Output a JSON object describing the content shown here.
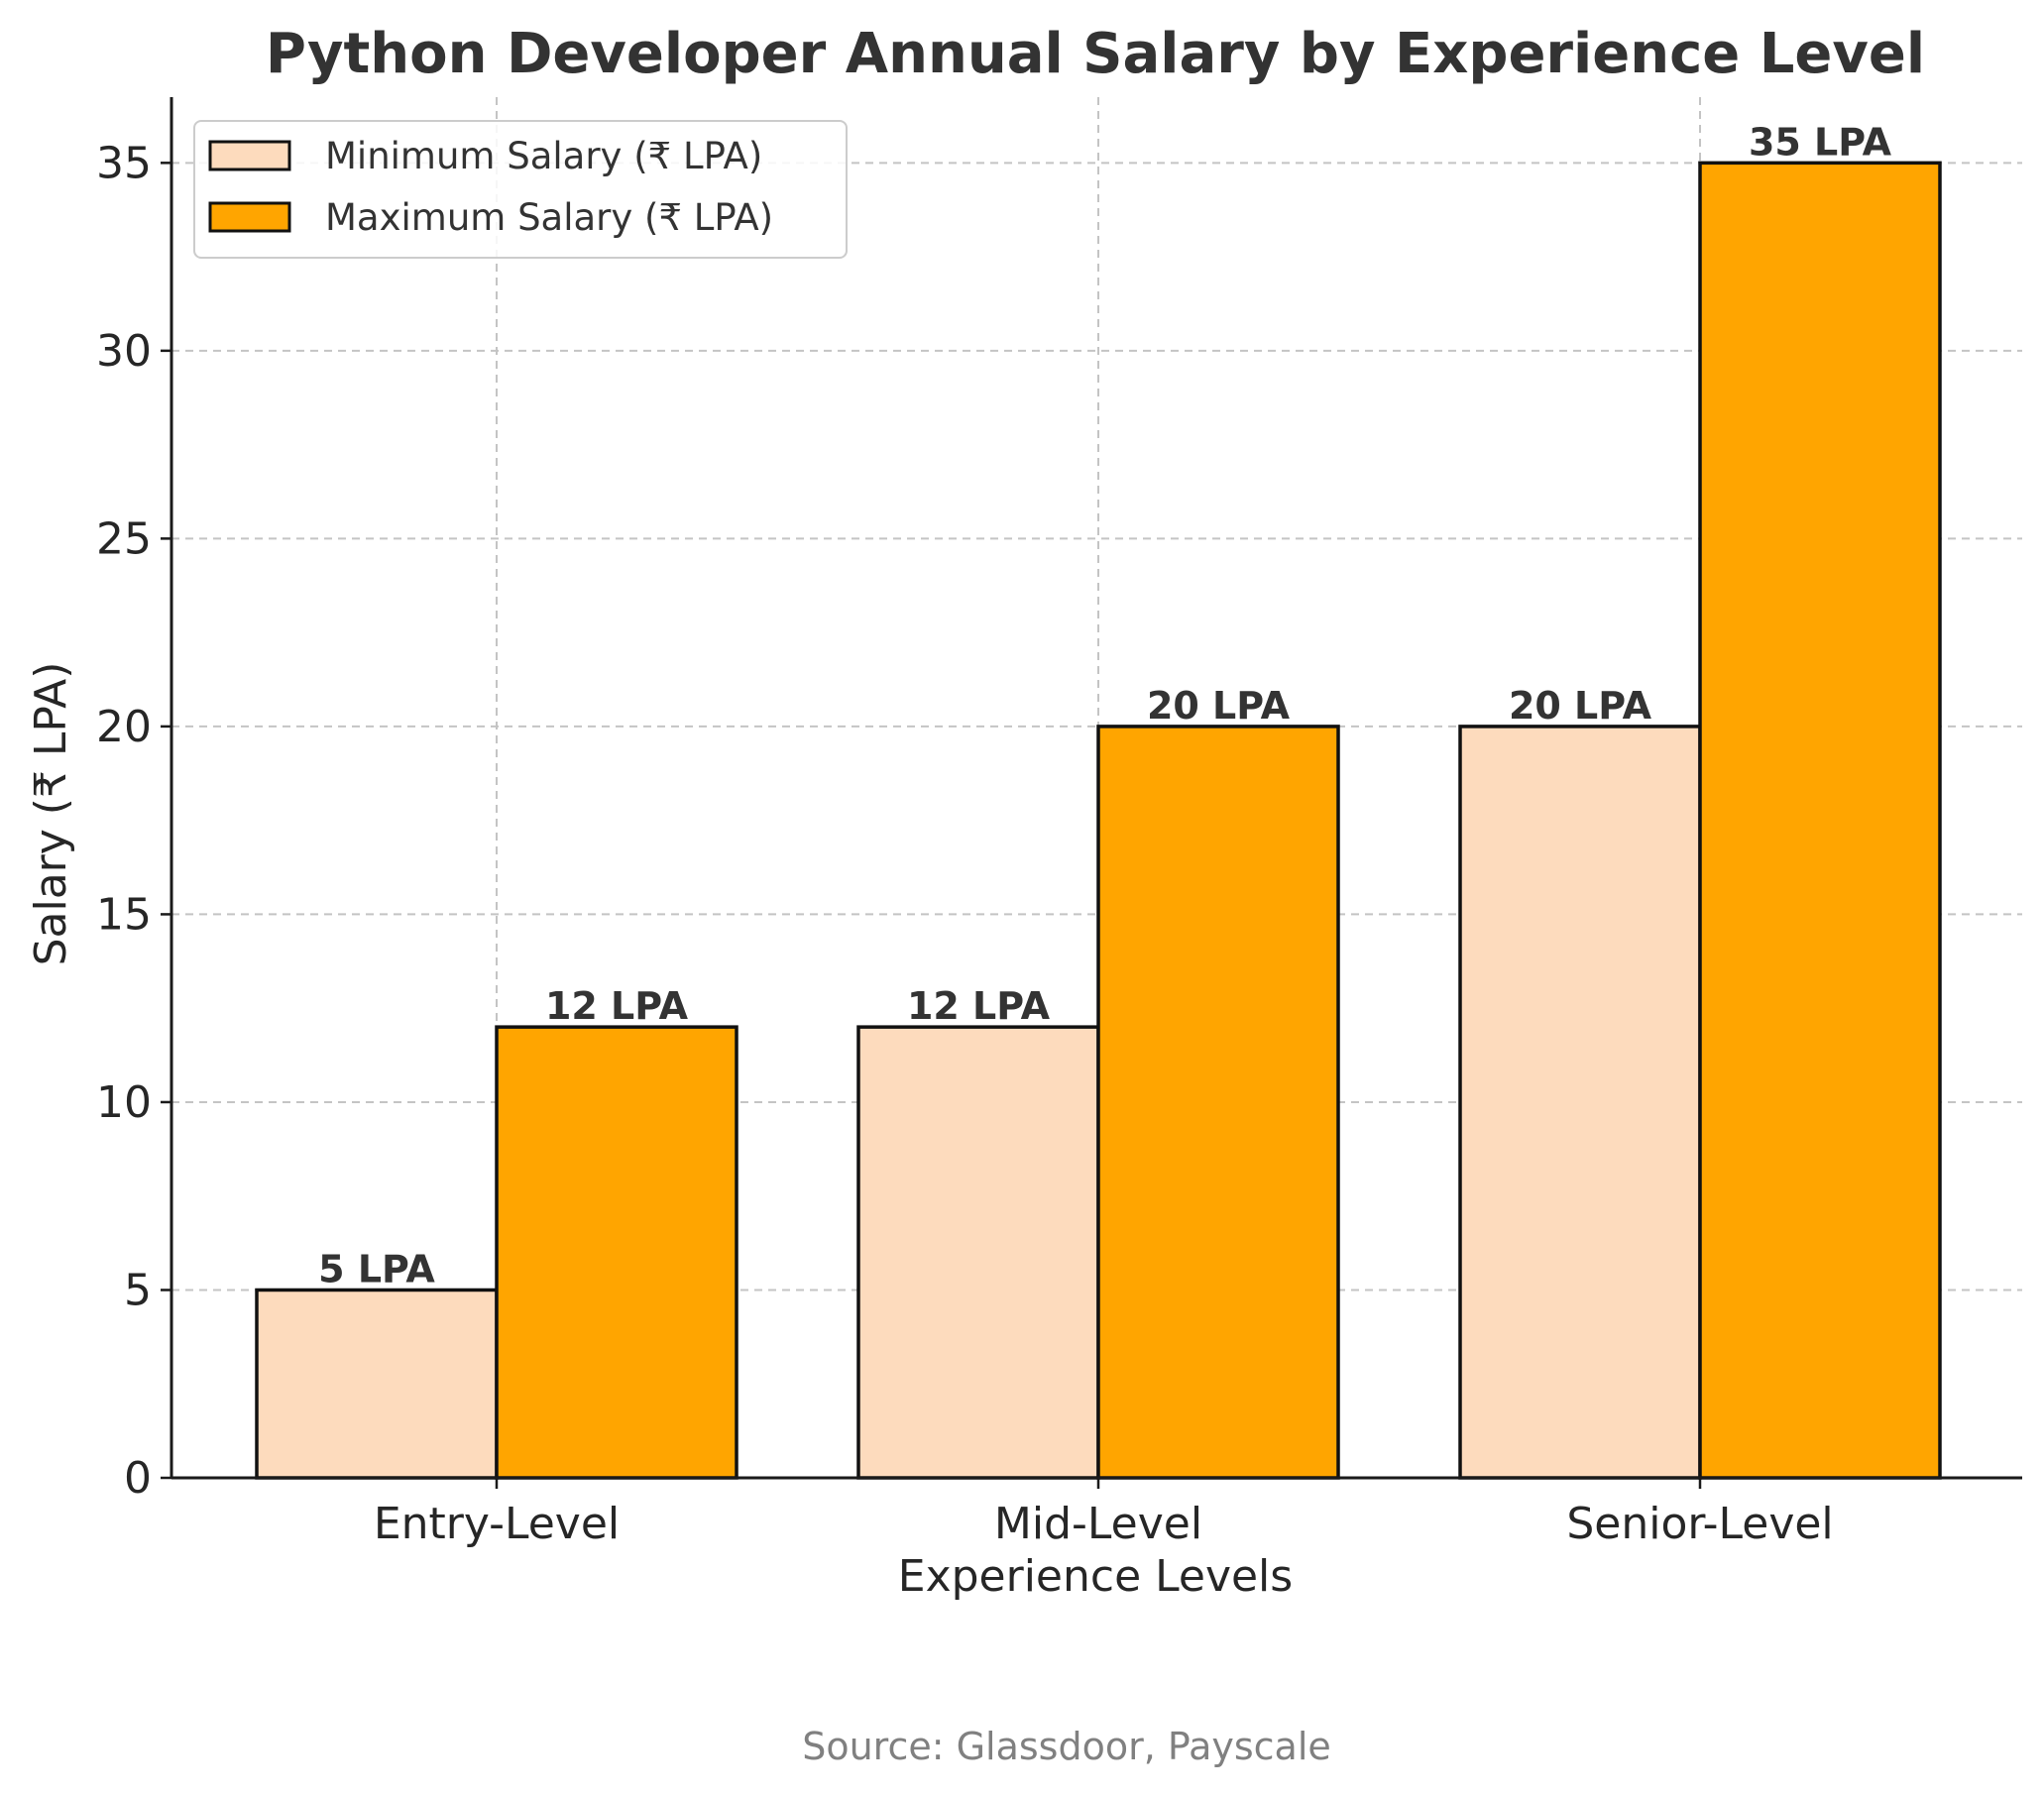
{
  "chart_data": {
    "type": "bar",
    "title": "Python Developer Annual Salary by Experience Level",
    "xlabel": "Experience Levels",
    "ylabel": "Salary (₹ LPA)",
    "categories": [
      "Entry-Level",
      "Mid-Level",
      "Senior-Level"
    ],
    "series": [
      {
        "name": "Minimum Salary (₹ LPA)",
        "values": [
          5,
          12,
          20
        ],
        "labels": [
          "5 LPA",
          "12 LPA",
          "20 LPA"
        ],
        "color": "#FDDBBD"
      },
      {
        "name": "Maximum Salary (₹ LPA)",
        "values": [
          12,
          20,
          35
        ],
        "labels": [
          "12 LPA",
          "20 LPA",
          "35 LPA"
        ],
        "color": "#FFA500"
      }
    ],
    "ylim": [
      0,
      36.75
    ],
    "yticks": [
      0,
      5,
      10,
      15,
      20,
      25,
      30,
      35
    ],
    "ytick_labels": [
      "0",
      "5",
      "10",
      "15",
      "20",
      "25",
      "30",
      "35"
    ],
    "grid": true,
    "legend_position": "top-left",
    "source": "Source: Glassdoor, Payscale"
  }
}
